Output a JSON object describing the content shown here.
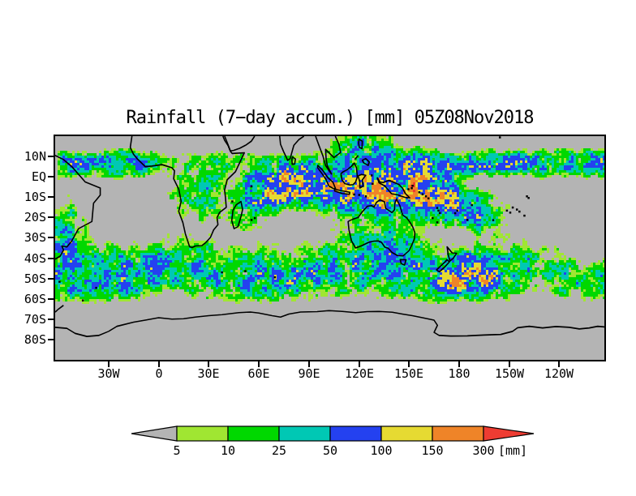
{
  "chart_data": {
    "type": "heatmap",
    "subtype": "global-rainfall-map",
    "title": "Rainfall (7−day accum.) [mm] 05Z08Nov2018",
    "variable": "Rainfall, 7-day accumulation",
    "units": "mm",
    "valid_time_label": "05Z08Nov2018",
    "projection": "latlon",
    "lon_range": [
      -62,
      267
    ],
    "lat_range": [
      -90,
      20
    ],
    "lat_ticks": [
      {
        "label": "10N",
        "value": 10
      },
      {
        "label": "EQ",
        "value": 0
      },
      {
        "label": "10S",
        "value": -10
      },
      {
        "label": "20S",
        "value": -20
      },
      {
        "label": "30S",
        "value": -30
      },
      {
        "label": "40S",
        "value": -40
      },
      {
        "label": "50S",
        "value": -50
      },
      {
        "label": "60S",
        "value": -60
      },
      {
        "label": "70S",
        "value": -70
      },
      {
        "label": "80S",
        "value": -80
      }
    ],
    "lon_ticks": [
      {
        "label": "30W",
        "value": -30
      },
      {
        "label": "0",
        "value": 0
      },
      {
        "label": "30E",
        "value": 30
      },
      {
        "label": "60E",
        "value": 60
      },
      {
        "label": "90E",
        "value": 90
      },
      {
        "label": "120E",
        "value": 120
      },
      {
        "label": "150E",
        "value": 150
      },
      {
        "label": "180",
        "value": 180
      },
      {
        "label": "150W",
        "value": 210
      },
      {
        "label": "120W",
        "value": 240
      }
    ],
    "background_color": "#b4b4b4",
    "coastline_color": "#000000",
    "colorbar": {
      "levels": [
        5,
        10,
        25,
        50,
        100,
        150,
        300
      ],
      "band_colors": [
        "#a0e632",
        "#00d800",
        "#00c8b4",
        "#2441f0",
        "#e6da32",
        "#ef8428"
      ],
      "underflow_color": "#b4b4b4",
      "overflow_color": "#ee3c32",
      "units_label": "[mm]"
    },
    "visible_land": [
      "South America",
      "Africa",
      "Arabia",
      "India",
      "Sri Lanka",
      "Southeast Asia",
      "Indonesia",
      "New Guinea",
      "Philippines",
      "Australia",
      "Tasmania",
      "New Zealand",
      "Madagascar",
      "Pacific islands",
      "Antarctica"
    ],
    "notable_features": [
      {
        "region": "Equatorial Indian Ocean 60E-100E",
        "rainfall_mm": "150-300+"
      },
      {
        "region": "Maritime Continent / Indonesia",
        "rainfall_mm": "50-300"
      },
      {
        "region": "SPCZ 150E-160W, 5S-25S",
        "rainfall_mm": "100-300"
      },
      {
        "region": "East Pacific ITCZ 5N-10N",
        "rainfall_mm": "50-300"
      },
      {
        "region": "Atlantic ITCZ near equator",
        "rainfall_mm": "25-150"
      },
      {
        "region": "Southern Ocean storm track 35S-60S",
        "rainfall_mm": "10-100"
      },
      {
        "region": "Southeast of New Zealand",
        "rainfall_mm": "150-300+"
      },
      {
        "region": "Subtropical SE Pacific and S Atlantic",
        "rainfall_mm": "<5 (dry)"
      },
      {
        "region": "Antarctica south of 63S",
        "rainfall_mm": "no data (gray)"
      }
    ]
  }
}
